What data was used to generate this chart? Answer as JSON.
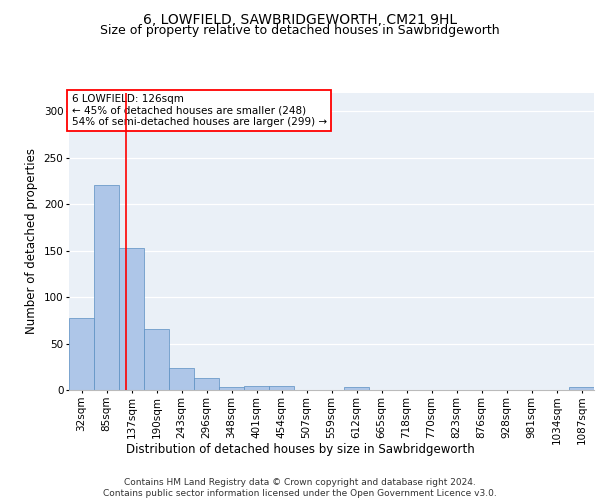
{
  "title_line1": "6, LOWFIELD, SAWBRIDGEWORTH, CM21 9HL",
  "title_line2": "Size of property relative to detached houses in Sawbridgeworth",
  "xlabel": "Distribution of detached houses by size in Sawbridgeworth",
  "ylabel": "Number of detached properties",
  "bar_labels": [
    "32sqm",
    "85sqm",
    "137sqm",
    "190sqm",
    "243sqm",
    "296sqm",
    "348sqm",
    "401sqm",
    "454sqm",
    "507sqm",
    "559sqm",
    "612sqm",
    "665sqm",
    "718sqm",
    "770sqm",
    "823sqm",
    "876sqm",
    "928sqm",
    "981sqm",
    "1034sqm",
    "1087sqm"
  ],
  "bar_values": [
    77,
    220,
    153,
    66,
    24,
    13,
    3,
    4,
    4,
    0,
    0,
    3,
    0,
    0,
    0,
    0,
    0,
    0,
    0,
    0,
    3
  ],
  "bar_color": "#aec6e8",
  "bar_edge_color": "#5a8fc2",
  "vline_color": "red",
  "vline_x": 1.77,
  "annotation_text": "6 LOWFIELD: 126sqm\n← 45% of detached houses are smaller (248)\n54% of semi-detached houses are larger (299) →",
  "annotation_box_color": "white",
  "annotation_box_edge": "red",
  "ylim": [
    0,
    320
  ],
  "yticks": [
    0,
    50,
    100,
    150,
    200,
    250,
    300
  ],
  "background_color": "#eaf0f7",
  "footer_text": "Contains HM Land Registry data © Crown copyright and database right 2024.\nContains public sector information licensed under the Open Government Licence v3.0.",
  "title_fontsize": 10,
  "subtitle_fontsize": 9,
  "axis_label_fontsize": 8.5,
  "tick_fontsize": 7.5,
  "footer_fontsize": 6.5,
  "annotation_fontsize": 7.5
}
